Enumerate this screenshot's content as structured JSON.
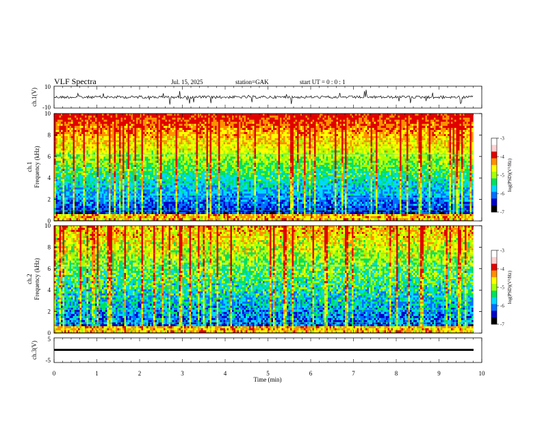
{
  "header": {
    "title": "VLF  Spectra",
    "date": "Jul.  15,  2025",
    "station": "station=GAK",
    "start": "start  UT  =    0  : 0   : 1"
  },
  "chart_data": [
    {
      "type": "line",
      "ylabel": "ch.1(V)",
      "ylim": [
        -10,
        10
      ],
      "y_ticks": [
        "10",
        "-10"
      ],
      "xlim": [
        0,
        10
      ]
    },
    {
      "type": "heatmap",
      "ylabel_top": "ch.1",
      "ylabel": "Frequency (kHz)",
      "ylim": [
        0,
        10
      ],
      "y_ticks": [
        "0",
        "2",
        "4",
        "6",
        "8",
        "10"
      ],
      "xlim": [
        0,
        10
      ],
      "colorbar": {
        "label": "log(PSD)(V²/Hz)",
        "ticks": [
          "-3",
          "-4",
          "-5",
          "-6",
          "-7"
        ],
        "range": [
          -7,
          -3
        ]
      }
    },
    {
      "type": "heatmap",
      "ylabel_top": "ch.2",
      "ylabel": "Frequency (kHz)",
      "ylim": [
        0,
        10
      ],
      "y_ticks": [
        "0",
        "2",
        "4",
        "6",
        "8",
        "10"
      ],
      "xlim": [
        0,
        10
      ],
      "colorbar": {
        "label": "log(PSD)(V²/Hz)",
        "ticks": [
          "-3",
          "-4",
          "-5",
          "-6",
          "-7"
        ],
        "range": [
          -7,
          -3
        ]
      }
    },
    {
      "type": "line",
      "ylabel": "ch.3(V)",
      "ylim": [
        -5,
        5
      ],
      "y_ticks": [
        "5",
        "-5"
      ],
      "xlim": [
        0,
        10
      ]
    }
  ],
  "xaxis": {
    "label": "Time  (min)",
    "ticks": [
      "0",
      "1",
      "2",
      "3",
      "4",
      "5",
      "6",
      "7",
      "8",
      "9",
      "10"
    ],
    "data_end": 9.8
  },
  "colors": {
    "trace": "#000000",
    "colormap": [
      "#000000",
      "#0000c8",
      "#0070ff",
      "#00d8ff",
      "#00e060",
      "#a8ff00",
      "#ffff00",
      "#ff9000",
      "#e00000"
    ]
  }
}
